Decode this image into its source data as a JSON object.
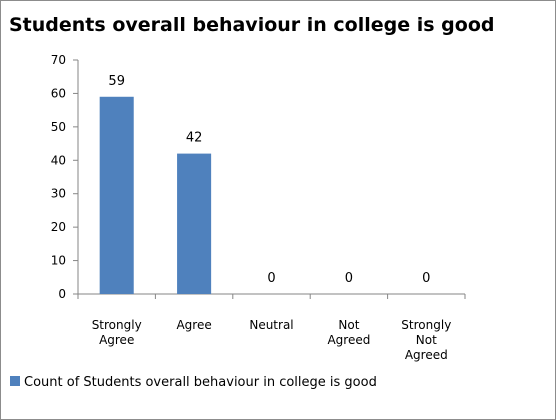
{
  "chart_data": {
    "type": "bar",
    "title": "Students overall behaviour in college is good",
    "categories": [
      [
        "Strongly",
        "Agree"
      ],
      [
        "Agree"
      ],
      [
        "Neutral"
      ],
      [
        "Not",
        "Agreed"
      ],
      [
        "Strongly",
        "Not",
        "Agreed"
      ]
    ],
    "series": [
      {
        "name": "Count of Students overall behaviour  in college is good",
        "values": [
          59,
          42,
          0,
          0,
          0
        ],
        "color": "#4f81bd"
      }
    ],
    "ylim": [
      0,
      70
    ],
    "yticks": [
      0,
      10,
      20,
      30,
      40,
      50,
      60,
      70
    ],
    "legend_position": "bottom-left",
    "grid": false
  }
}
